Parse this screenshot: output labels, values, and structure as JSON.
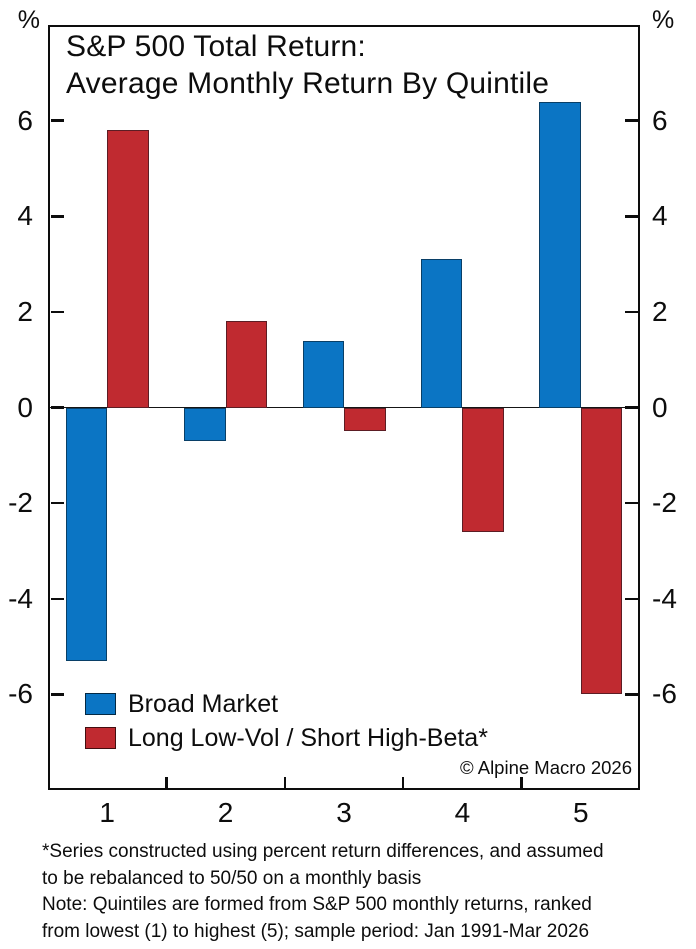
{
  "chart_data": {
    "type": "bar",
    "title_lines": [
      "S&P 500 Total Return:",
      "Average Monthly Return By Quintile"
    ],
    "y_axis_unit": "%",
    "categories": [
      "1",
      "2",
      "3",
      "4",
      "5"
    ],
    "series": [
      {
        "name": "Broad Market",
        "color": "#0b75c4",
        "values": [
          -5.3,
          -0.7,
          1.4,
          3.1,
          6.4
        ]
      },
      {
        "name": "Long Low-Vol / Short High-Beta*",
        "color": "#c02a30",
        "values": [
          5.8,
          1.8,
          -0.5,
          -2.6,
          -6.0
        ]
      }
    ],
    "ylim": [
      -8,
      8
    ],
    "yticks": [
      -6,
      -4,
      -2,
      0,
      2,
      4,
      6
    ],
    "grid": false,
    "legend_position": "bottom-left-inside",
    "copyright": "© Alpine Macro 2026"
  },
  "footnotes": {
    "lines": [
      "*Series constructed using percent return differences, and assumed",
      "to be rebalanced to 50/50 on a monthly basis",
      "Note: Quintiles are formed from S&P 500 monthly returns, ranked",
      "from lowest (1) to highest (5); sample period: Jan 1991-Mar 2026"
    ]
  }
}
